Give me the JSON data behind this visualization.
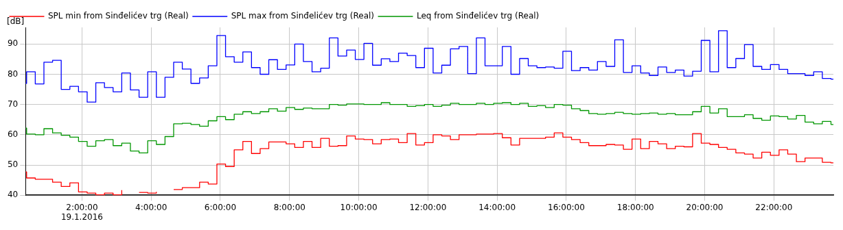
{
  "chart_data": {
    "type": "step",
    "ylabel": "[dB]",
    "x": [
      0.37,
      0.4,
      0.65,
      0.9,
      1.15,
      1.4,
      1.65,
      1.9,
      2.15,
      2.4,
      2.65,
      2.9,
      3.15,
      3.4,
      3.65,
      3.9,
      4.15,
      4.4,
      4.65,
      4.9,
      5.15,
      5.4,
      5.65,
      5.9,
      6.15,
      6.4,
      6.65,
      6.9,
      7.15,
      7.4,
      7.65,
      7.9,
      8.15,
      8.4,
      8.65,
      8.9,
      9.15,
      9.4,
      9.65,
      9.9,
      10.15,
      10.4,
      10.65,
      10.9,
      11.15,
      11.4,
      11.65,
      11.9,
      12.15,
      12.4,
      12.65,
      12.9,
      13.15,
      13.4,
      13.65,
      13.9,
      14.15,
      14.4,
      14.65,
      14.9,
      15.15,
      15.4,
      15.65,
      15.9,
      16.15,
      16.4,
      16.65,
      16.9,
      17.15,
      17.4,
      17.65,
      17.9,
      18.15,
      18.4,
      18.65,
      18.9,
      19.15,
      19.4,
      19.65,
      19.9,
      20.15,
      20.4,
      20.65,
      20.9,
      21.15,
      21.4,
      21.65,
      21.9,
      22.15,
      22.4,
      22.65,
      22.9,
      23.15,
      23.4,
      23.65
    ],
    "series": [
      {
        "name": "SPL min from Sinđelićev trg (Real)",
        "color": "#ff0000",
        "values": [
          47.7,
          45.7,
          45.3,
          45.3,
          44.3,
          42.9,
          44.1,
          41.1,
          40.7,
          40.1,
          40.7,
          40.1,
          41.7,
          null,
          40.9,
          40.7,
          41.1,
          null,
          41.9,
          42.5,
          42.5,
          44.3,
          43.7,
          50.3,
          49.5,
          55.0,
          57.8,
          53.8,
          55.4,
          57.6,
          57.6,
          57.0,
          55.8,
          57.8,
          55.8,
          58.8,
          56.2,
          56.4,
          59.6,
          58.6,
          58.4,
          57.0,
          58.4,
          58.6,
          57.4,
          60.4,
          56.6,
          57.4,
          60.0,
          59.6,
          58.4,
          60.0,
          60.0,
          60.2,
          60.2,
          60.4,
          59.0,
          56.6,
          58.8,
          58.8,
          58.8,
          59.2,
          60.6,
          59.2,
          58.4,
          57.4,
          56.4,
          56.4,
          56.8,
          56.6,
          55.2,
          58.6,
          55.4,
          57.8,
          57.0,
          55.4,
          56.2,
          56.0,
          60.4,
          57.2,
          56.8,
          55.8,
          55.2,
          54.0,
          53.6,
          52.3,
          54.2,
          53.2,
          55.0,
          53.6,
          51.1,
          52.3,
          52.3,
          50.9,
          50.7
        ]
      },
      {
        "name": "SPL max from Sinđelićev trg (Real)",
        "color": "#0000ff",
        "values": [
          77.0,
          80.8,
          76.8,
          84.0,
          84.6,
          75.0,
          76.0,
          74.2,
          70.8,
          77.2,
          75.6,
          74.2,
          80.4,
          74.8,
          72.4,
          80.8,
          72.4,
          79.0,
          84.0,
          81.7,
          77.0,
          78.8,
          82.8,
          92.8,
          85.8,
          84.0,
          87.4,
          82.2,
          80.0,
          84.8,
          81.6,
          83.1,
          90.0,
          84.2,
          80.8,
          82.0,
          92.0,
          86.0,
          88.0,
          84.9,
          90.2,
          83.0,
          85.1,
          84.2,
          87.0,
          86.2,
          82.2,
          88.6,
          80.4,
          83.0,
          88.4,
          89.2,
          80.2,
          92.0,
          82.8,
          82.8,
          89.2,
          80.0,
          85.2,
          82.8,
          82.2,
          82.4,
          82.0,
          87.6,
          81.2,
          82.2,
          81.4,
          84.2,
          82.6,
          91.4,
          80.6,
          82.8,
          80.4,
          79.6,
          82.4,
          80.6,
          81.4,
          79.4,
          81.0,
          91.2,
          80.8,
          94.4,
          82.2,
          85.2,
          89.8,
          82.6,
          81.6,
          83.2,
          81.6,
          80.2,
          80.2,
          79.6,
          80.8,
          78.6,
          78.4
        ]
      },
      {
        "name": "Leq from Sinđelićev trg (Real)",
        "color": "#009600",
        "values": [
          62.2,
          60.2,
          60.0,
          62.0,
          60.6,
          59.8,
          59.2,
          57.8,
          56.2,
          58.0,
          58.4,
          56.4,
          57.2,
          54.6,
          54.0,
          58.0,
          56.8,
          59.4,
          63.6,
          63.8,
          63.4,
          62.8,
          64.6,
          66.0,
          65.0,
          66.8,
          67.6,
          67.0,
          67.6,
          68.6,
          67.8,
          69.0,
          68.4,
          68.8,
          68.6,
          68.6,
          70.0,
          69.8,
          70.2,
          70.2,
          70.0,
          70.0,
          70.6,
          70.0,
          70.0,
          69.4,
          69.6,
          70.0,
          69.4,
          69.8,
          70.4,
          70.0,
          70.0,
          70.4,
          70.0,
          70.4,
          70.6,
          70.0,
          70.4,
          69.4,
          69.6,
          69.0,
          70.0,
          69.8,
          68.6,
          68.0,
          67.0,
          66.8,
          67.0,
          67.4,
          67.0,
          66.8,
          67.0,
          67.2,
          66.8,
          67.0,
          66.6,
          66.6,
          67.6,
          69.4,
          67.2,
          68.6,
          66.0,
          66.0,
          66.6,
          65.4,
          64.8,
          66.2,
          66.0,
          65.2,
          66.4,
          64.2,
          63.6,
          64.4,
          63.4
        ]
      }
    ],
    "xlim": [
      0.37,
      23.72
    ],
    "ylim": [
      40,
      95.5
    ],
    "xticks": [
      {
        "value": 2,
        "label": "2:00:00\n19.1.2016"
      },
      {
        "value": 4,
        "label": "4:00:00"
      },
      {
        "value": 6,
        "label": "6:00:00"
      },
      {
        "value": 8,
        "label": "8:00:00"
      },
      {
        "value": 10,
        "label": "10:00:00"
      },
      {
        "value": 12,
        "label": "12:00:00"
      },
      {
        "value": 14,
        "label": "14:00:00"
      },
      {
        "value": 16,
        "label": "16:00:00"
      },
      {
        "value": 18,
        "label": "18:00:00"
      },
      {
        "value": 20,
        "label": "20:00:00"
      },
      {
        "value": 22,
        "label": "22:00:00"
      }
    ],
    "yticks": [
      40,
      50,
      60,
      70,
      80,
      90
    ],
    "grid": true,
    "legend": "top left"
  }
}
